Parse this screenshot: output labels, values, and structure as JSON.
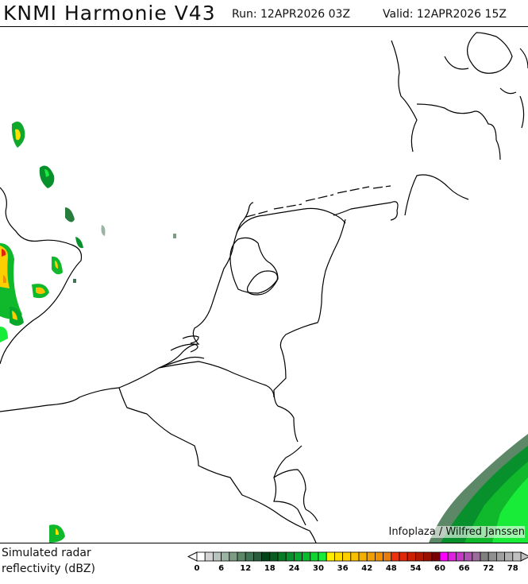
{
  "header": {
    "title": "KNMI Harmonie V43",
    "run": "Run: 12APR2026 03Z",
    "valid": "Valid: 12APR2026 15Z"
  },
  "map": {
    "credit": "Infoplaza / Wilfred Janssen"
  },
  "legend": {
    "label_line1": "Simulated radar",
    "label_line2": "reflectivity (dBZ)",
    "ticks": [
      "0",
      "6",
      "12",
      "18",
      "24",
      "30",
      "36",
      "42",
      "48",
      "54",
      "60",
      "66",
      "72",
      "78"
    ],
    "colors": [
      "#ffffff",
      "#d4d4d4",
      "#b8c4be",
      "#9cb4a4",
      "#7c9c84",
      "#5c8868",
      "#407454",
      "#285c3c",
      "#004418",
      "#085c20",
      "#087c24",
      "#08902c",
      "#08a82c",
      "#08bc2c",
      "#10d430",
      "#18ec38",
      "#ffee00",
      "#ffdc00",
      "#fcd000",
      "#f8c000",
      "#f4b000",
      "#f0a000",
      "#f09000",
      "#e87c10",
      "#f03010",
      "#e02808",
      "#cc2000",
      "#b01800",
      "#981000",
      "#780000",
      "#ff00ff",
      "#e020e0",
      "#c838c8",
      "#b050b0",
      "#9c6c9c",
      "#808080",
      "#909090",
      "#a0a0a0",
      "#b0b0b0",
      "#c0c0c0"
    ]
  }
}
